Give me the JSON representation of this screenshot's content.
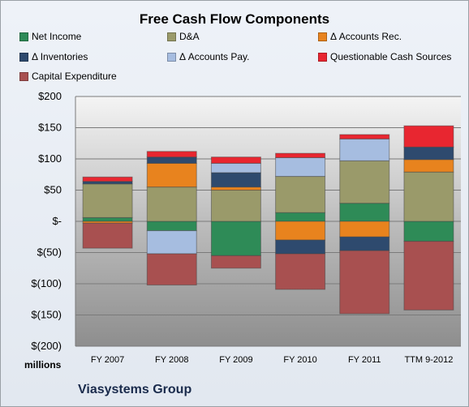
{
  "chart_data": {
    "type": "bar",
    "stacked": true,
    "title": "Free Cash Flow Components",
    "categories": [
      "FY 2007",
      "FY 2008",
      "FY 2009",
      "FY 2010",
      "FY 2011",
      "TTM 9-2012"
    ],
    "ylim": [
      -200,
      200
    ],
    "yticks": [
      200,
      150,
      100,
      50,
      0,
      -50,
      -100,
      -150,
      -200
    ],
    "ytick_labels": [
      "$200",
      "$150",
      "$100",
      "$50",
      "$-",
      "$(50)",
      "$(100)",
      "$(150)",
      "$(200)"
    ],
    "y_unit_label": "millions",
    "grid": true,
    "legend_position": "top",
    "series": [
      {
        "name": "Net Income",
        "color": "#2e8b57",
        "values": [
          6,
          -15,
          -55,
          14,
          29,
          -32
        ]
      },
      {
        "name": "D&A",
        "color": "#9a9a6a",
        "values": [
          54,
          55,
          50,
          58,
          68,
          79
        ]
      },
      {
        "name": "Δ Accounts Rec.",
        "color": "#e8831e",
        "values": [
          -3,
          38,
          5,
          -30,
          -25,
          20
        ]
      },
      {
        "name": "Δ Inventories",
        "color": "#2e4a6e",
        "values": [
          4,
          10,
          23,
          -22,
          -22,
          20
        ]
      },
      {
        "name": "Δ Accounts Pay.",
        "color": "#a6bde0",
        "values": [
          0,
          -37,
          15,
          30,
          35,
          0
        ]
      },
      {
        "name": "Questionable Cash Sources",
        "color": "#e82630",
        "values": [
          7,
          9,
          10,
          7,
          7,
          34
        ]
      },
      {
        "name": "Capital Expenditure",
        "color": "#a85050",
        "values": [
          -40,
          -50,
          -20,
          -57,
          -101,
          -110
        ]
      }
    ]
  },
  "footer": {
    "company": "Viasystems Group"
  }
}
